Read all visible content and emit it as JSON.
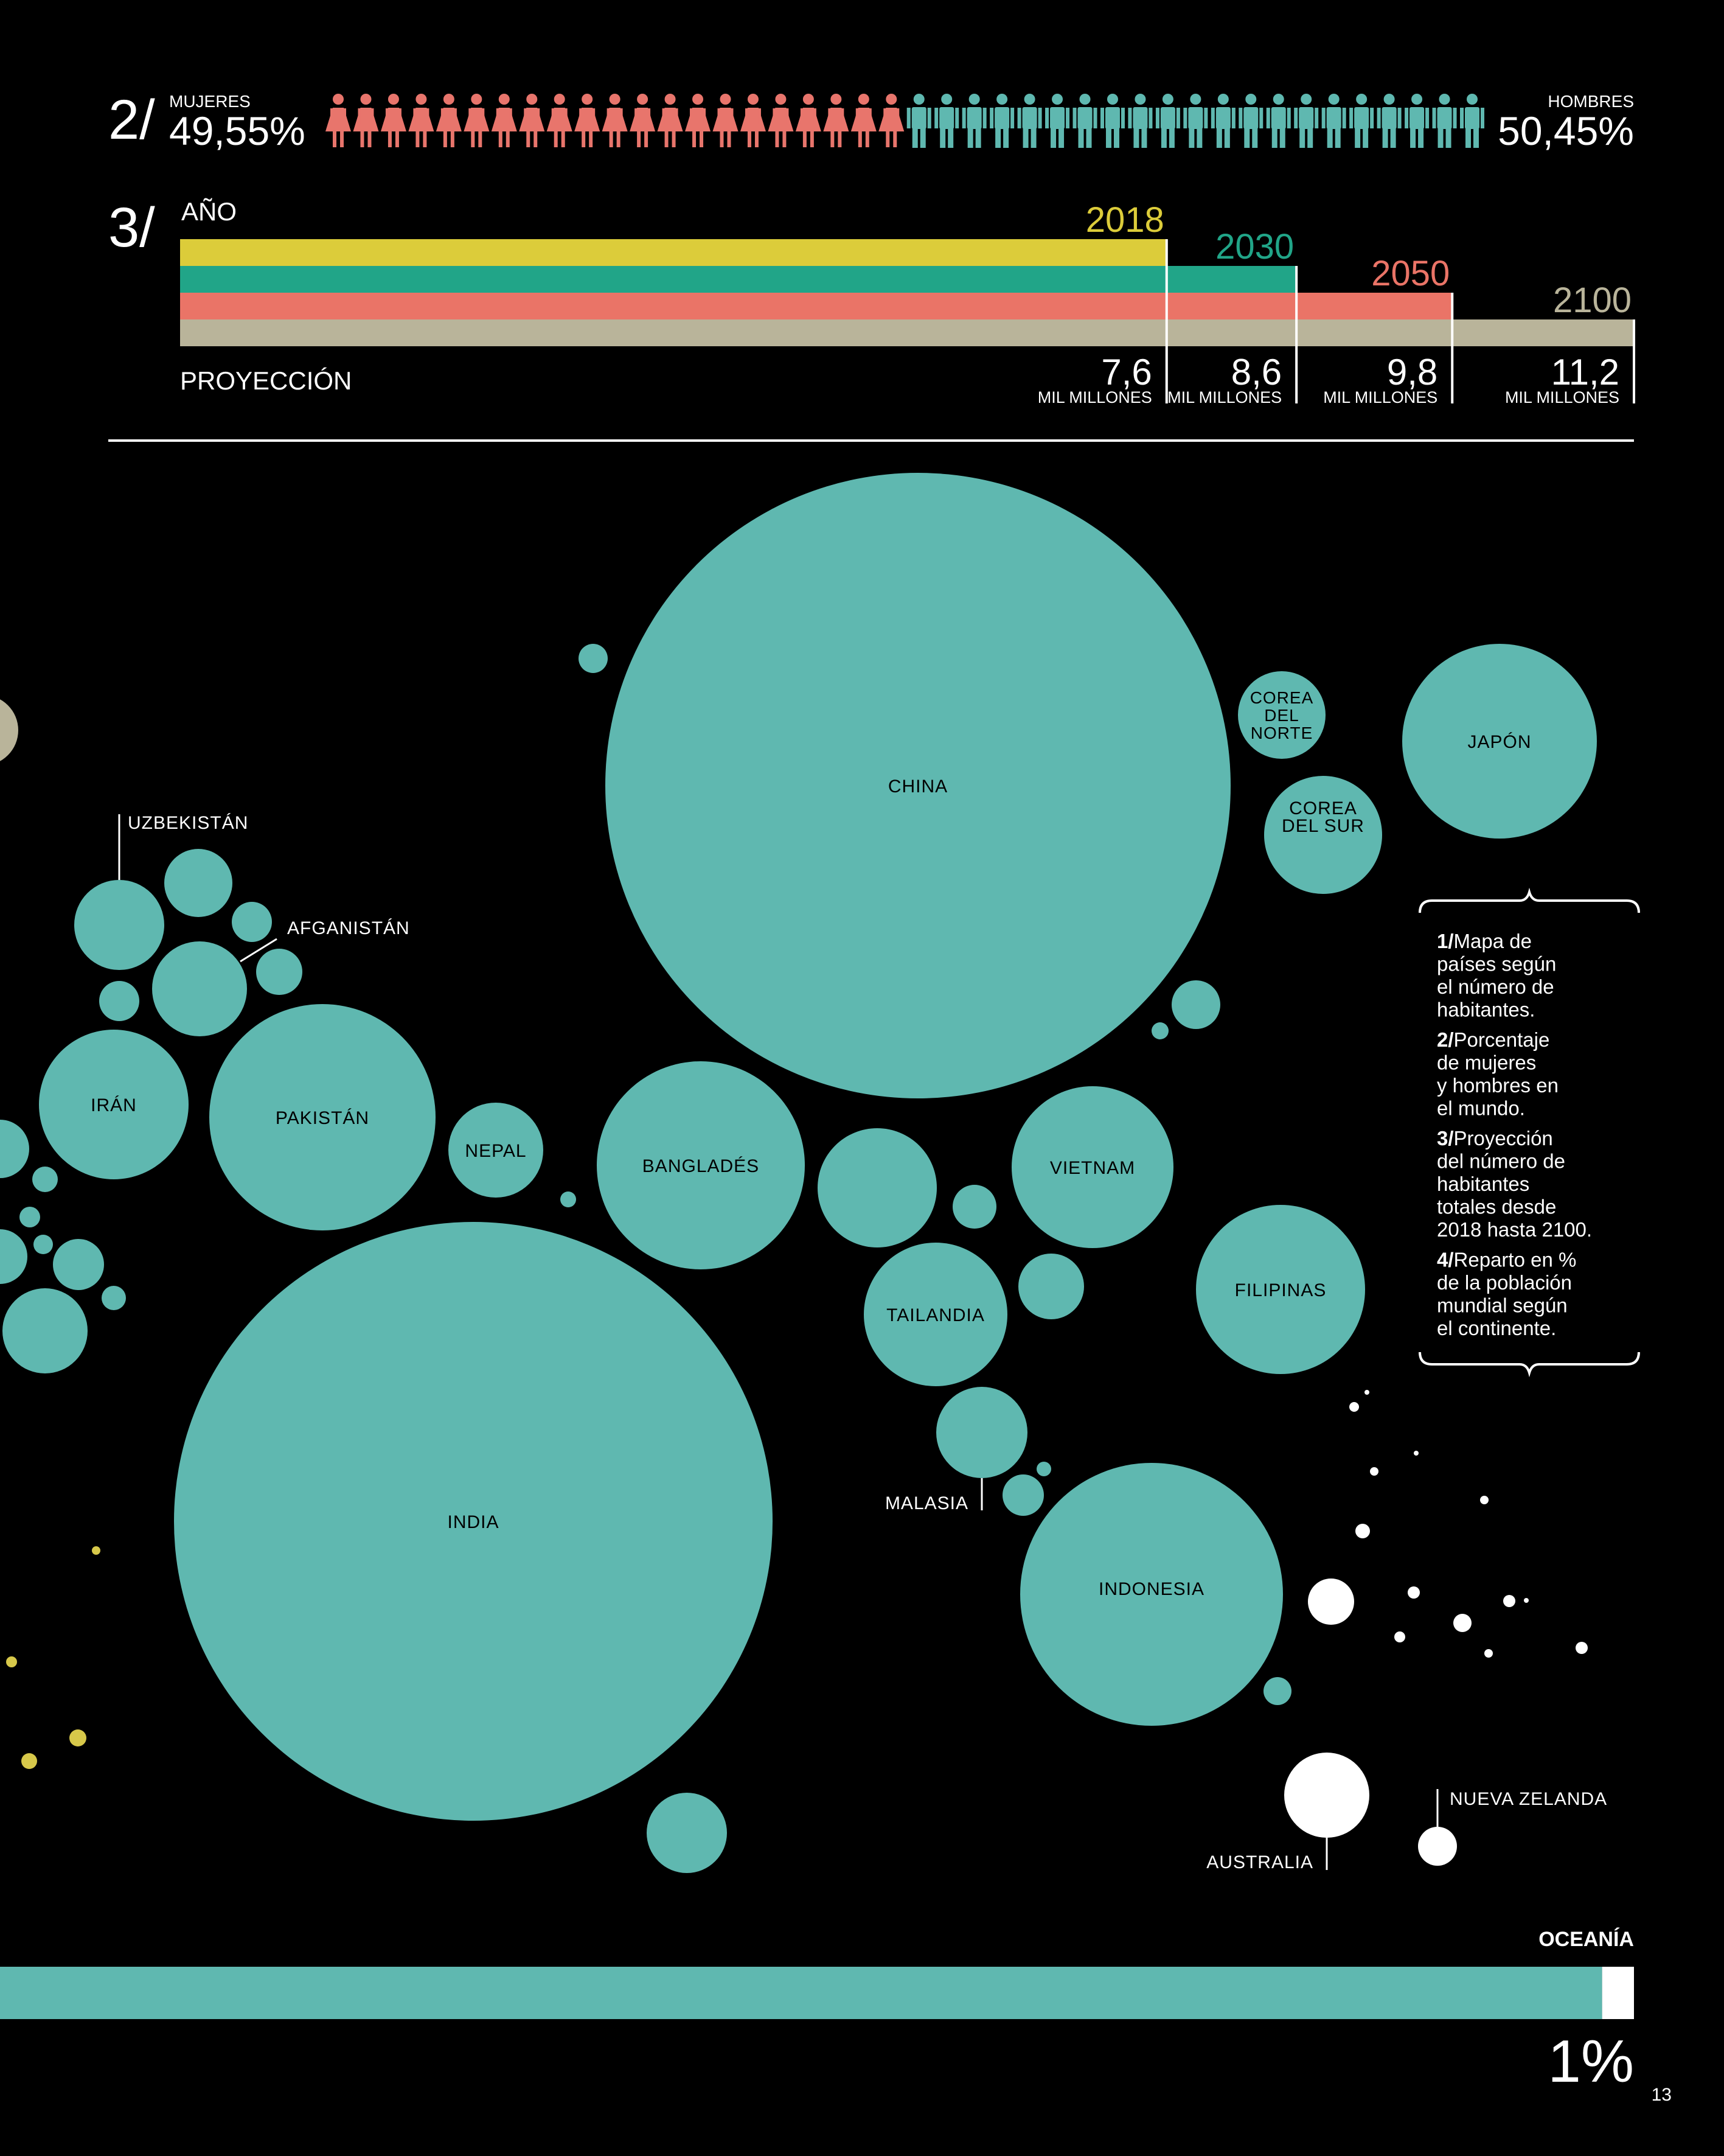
{
  "colors": {
    "background": "#000000",
    "teal": "#5fb8b0",
    "female": "#e8756c",
    "male": "#5fb8b0",
    "y2018": "#dccc3a",
    "y2030": "#21a588",
    "y2050": "#ea7467",
    "y2100": "#b9b49a",
    "white": "#ffffff",
    "yellow_dots": "#d7c84a"
  },
  "gender": {
    "number": "2/",
    "women_label": "MUJERES",
    "women_value": "49,55%",
    "men_label": "HOMBRES",
    "men_value": "50,45%",
    "women_count": 21,
    "men_count": 21,
    "women_icon": "woman-icon",
    "men_icon": "man-icon"
  },
  "projection": {
    "number": "3/",
    "year_label": "AÑO",
    "footer_label": "PROYECCIÓN",
    "unit": "MIL MILLONES"
  },
  "chart_data": [
    {
      "type": "bar",
      "title": "AÑO",
      "xlabel": "PROYECCIÓN",
      "categories": [
        "2018",
        "2030",
        "2050",
        "2100"
      ],
      "values": [
        7.6,
        8.6,
        9.8,
        11.2
      ],
      "value_labels": [
        "7,6",
        "8,6",
        "9,8",
        "11,2"
      ],
      "unit": "MIL MILLONES",
      "xlim": [
        0,
        11.2
      ]
    },
    {
      "type": "bubble",
      "title": "Mapa de países según el número de habitantes",
      "labeled_countries": [
        "CHINA",
        "INDIA",
        "INDONESIA",
        "PAKISTÁN",
        "BANGLADÉS",
        "JAPÓN",
        "FILIPINAS",
        "VIETNAM",
        "IRÁN",
        "TAILANDIA",
        "COREA DEL SUR",
        "COREA DEL NORTE",
        "NEPAL",
        "UZBEKISTÁN",
        "AFGANISTÁN",
        "MALASIA",
        "AUSTRALIA",
        "NUEVA ZELANDA"
      ]
    },
    {
      "type": "bar",
      "title": "OCEANÍA",
      "categories": [
        "OCEANÍA"
      ],
      "values": [
        1
      ],
      "value_labels": [
        "1%"
      ],
      "unit": "%"
    }
  ],
  "bubbles": {
    "china": "CHINA",
    "india": "INDIA",
    "indonesia": "INDONESIA",
    "pakistan": "PAKISTÁN",
    "bangladesh": "BANGLADÉS",
    "japan": "JAPÓN",
    "philippines": "FILIPINAS",
    "vietnam": "VIETNAM",
    "iran": "IRÁN",
    "thailand": "TAILANDIA",
    "south_korea_1": "COREA",
    "south_korea_2": "DEL SUR",
    "north_korea_1": "COREA",
    "north_korea_2": "DEL",
    "north_korea_3": "NORTE",
    "nepal": "NEPAL",
    "uzbekistan": "UZBEKISTÁN",
    "afghanistan": "AFGANISTÁN",
    "malaysia": "MALASIA",
    "australia": "AUSTRALIA",
    "new_zealand": "NUEVA ZELANDA"
  },
  "legend": {
    "items": [
      {
        "num": "1/",
        "lines": [
          "Mapa de",
          "países según",
          "el número de",
          "habitantes."
        ]
      },
      {
        "num": "2/",
        "lines": [
          "Porcentaje",
          "de mujeres",
          "y hombres en",
          "el mundo."
        ]
      },
      {
        "num": "3/",
        "lines": [
          "Proyección",
          "del número de",
          "habitantes",
          "totales desde",
          "2018 hasta 2100."
        ]
      },
      {
        "num": "4/",
        "lines": [
          "Reparto en %",
          "de la población",
          "mundial según",
          "el continente."
        ]
      }
    ]
  },
  "continent": {
    "label": "OCEANÍA",
    "value": "1%"
  },
  "page_number": "13"
}
